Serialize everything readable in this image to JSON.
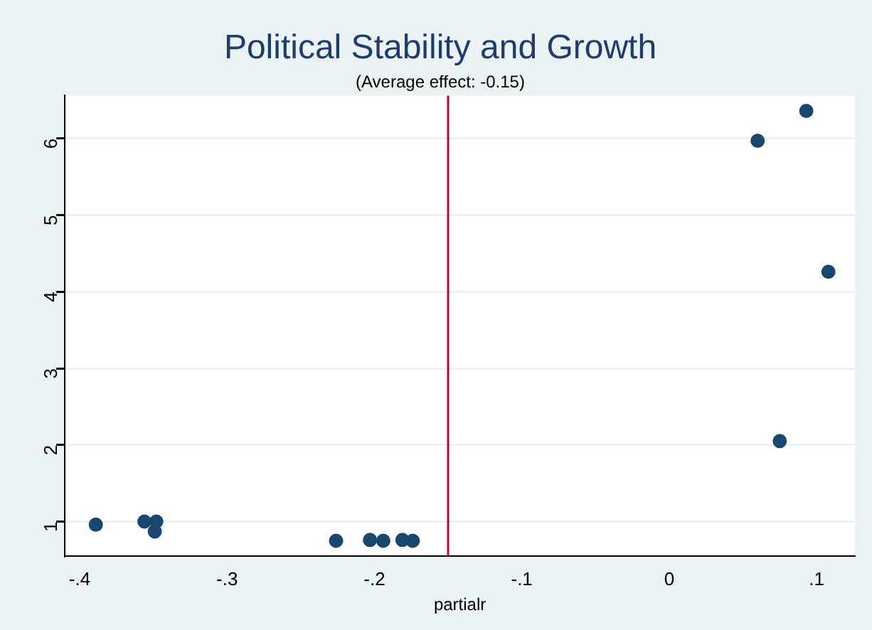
{
  "chart_data": {
    "type": "scatter",
    "title": "Political Stability and Growth",
    "subtitle": "(Average effect: -0.15)",
    "xlabel": "partialr",
    "x": [
      -0.389,
      -0.356,
      -0.348,
      -0.349,
      -0.226,
      -0.203,
      -0.194,
      -0.181,
      -0.174,
      0.093,
      0.06,
      0.108,
      0.075
    ],
    "series": [
      {
        "color": "#1a476f",
        "values": [
          0.96,
          1.0,
          1.0,
          0.87,
          0.75,
          0.76,
          0.75,
          0.76,
          0.75,
          6.36,
          5.97,
          4.26,
          2.05
        ]
      }
    ],
    "xlim": [
      -0.41,
      0.126
    ],
    "xticks": [
      {
        "value": -0.4,
        "label": "-.4"
      },
      {
        "value": -0.3,
        "label": "-.3"
      },
      {
        "value": -0.2,
        "label": "-.2"
      },
      {
        "value": -0.1,
        "label": "-.1"
      },
      0,
      {
        "value": 0.1,
        "label": ".1"
      }
    ],
    "ylim": [
      0.55,
      6.56
    ],
    "yticks": [
      1,
      2,
      3,
      4,
      5,
      6
    ],
    "ref_lines": [
      {
        "axis": "x",
        "value": -0.15,
        "color": "#c10534"
      }
    ],
    "grid": "y",
    "legend": false,
    "marker": "circle"
  }
}
